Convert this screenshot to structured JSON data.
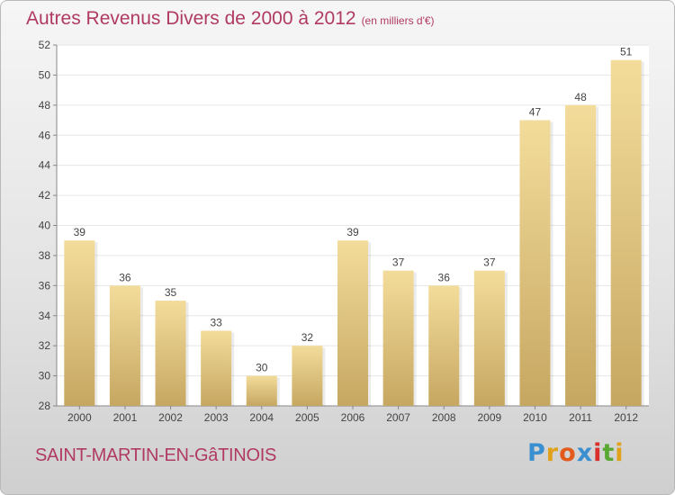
{
  "title": "Autres Revenus Divers de 2000 à 2012",
  "unit_note": "(en milliers d'€)",
  "commune": "SAINT-MARTIN-EN-GâTINOIS",
  "brand": {
    "letters": [
      "P",
      "r",
      "o",
      "x",
      "i",
      "t",
      "i"
    ],
    "colors": [
      "#3a8fd0",
      "#e0a21b",
      "#e25a1c",
      "#3a8fd0",
      "#d9302c",
      "#5aa832",
      "#e0a21b"
    ]
  },
  "colors": {
    "bar_light": "#f3dc9b",
    "bar_dark": "#c6a761",
    "title": "#b03a63",
    "plot_bg": "#ffffff",
    "grid": "#e6e6e6",
    "axis": "#888888"
  },
  "chart_data": {
    "type": "bar",
    "categories": [
      "2000",
      "2001",
      "2002",
      "2003",
      "2004",
      "2005",
      "2006",
      "2007",
      "2008",
      "2009",
      "2010",
      "2011",
      "2012"
    ],
    "values": [
      39,
      36,
      35,
      33,
      30,
      32,
      39,
      37,
      36,
      37,
      47,
      48,
      51
    ],
    "ylim": [
      28,
      52
    ],
    "yticks": [
      28,
      30,
      32,
      34,
      36,
      38,
      40,
      42,
      44,
      46,
      48,
      50,
      52
    ],
    "grid": true,
    "data_labels": true
  }
}
